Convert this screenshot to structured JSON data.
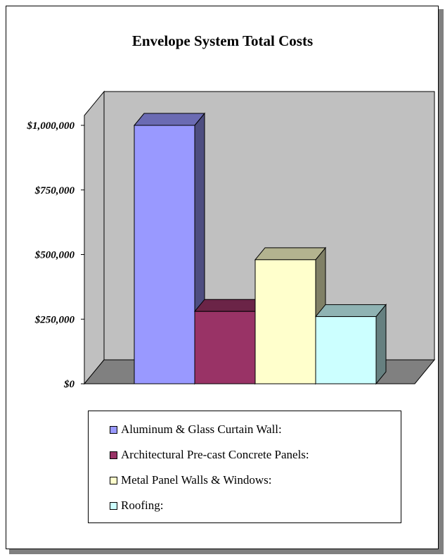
{
  "chart_data": {
    "type": "bar",
    "title": "Envelope System Total Costs",
    "categories": [
      "Aluminum & Glass Curtain Wall:",
      "Architectural Pre-cast Concrete Panels:",
      "Metal Panel Walls & Windows:",
      "Roofing:"
    ],
    "values": [
      1000000,
      280000,
      480000,
      260000
    ],
    "ylim": [
      0,
      1000000
    ],
    "yticks": [
      0,
      250000,
      500000,
      750000,
      1000000
    ],
    "ytick_labels": [
      "$0",
      "$250,000",
      "$500,000",
      "$750,000",
      "$1,000,000"
    ],
    "xlabel": "",
    "ylabel": "",
    "grid": false,
    "legend_position": "bottom",
    "style": "3d",
    "colors": [
      "#9999ff",
      "#993366",
      "#ffffcc",
      "#ccffff"
    ],
    "side_colors": [
      "#4d4d80",
      "#4d1a33",
      "#808066",
      "#668080"
    ],
    "top_colors": [
      "#6b6bb3",
      "#6b2447",
      "#b3b38f",
      "#8fb3b3"
    ],
    "wall_color": "#c0c0c0",
    "floor_color": "#808080"
  }
}
